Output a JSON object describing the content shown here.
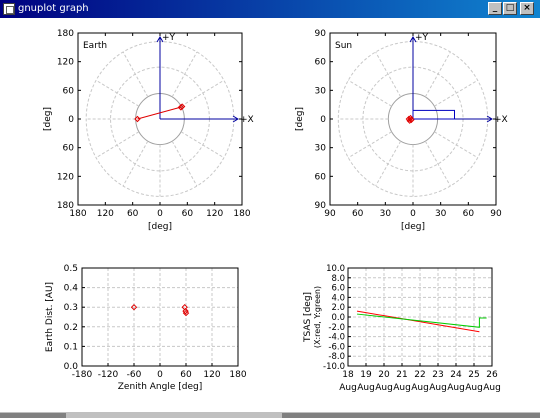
{
  "window": {
    "title": "gnuplot graph",
    "buttons": {
      "minimize": "_",
      "maximize": "□",
      "close": "×"
    }
  },
  "chart_data": [
    {
      "name": "earth-polar",
      "type": "scatter",
      "label": "Earth",
      "xlabel": "[deg]",
      "ylabel": "[deg]",
      "x_ticks": [
        "180",
        "120",
        "60",
        "0",
        "60",
        "120",
        "180"
      ],
      "y_ticks": [
        "180",
        "120",
        "60",
        "0",
        "60",
        "120",
        "180"
      ],
      "xlim": [
        -200,
        200
      ],
      "ylim": [
        -200,
        200
      ],
      "axis_labels": {
        "x": "+X",
        "y": "+Y"
      },
      "grid": true,
      "points": [
        [
          -55,
          0
        ],
        [
          51,
          27
        ],
        [
          54,
          29
        ]
      ],
      "path": [
        [
          -55,
          0
        ],
        [
          52,
          28
        ]
      ]
    },
    {
      "name": "sun-polar",
      "type": "scatter",
      "label": "Sun",
      "xlabel": "[deg]",
      "ylabel": "[deg]",
      "x_ticks": [
        "90",
        "60",
        "30",
        "0",
        "30",
        "60",
        "90"
      ],
      "y_ticks": [
        "90",
        "60",
        "30",
        "0",
        "30",
        "60",
        "90"
      ],
      "xlim": [
        -100,
        100
      ],
      "ylim": [
        -100,
        100
      ],
      "axis_labels": {
        "x": "+X",
        "y": "+Y"
      },
      "grid": true,
      "points": [
        [
          -5,
          0
        ],
        [
          -3,
          1
        ],
        [
          -2,
          -1
        ],
        [
          -4,
          -2
        ]
      ],
      "rect": [
        [
          0,
          0
        ],
        [
          50,
          10
        ]
      ]
    },
    {
      "name": "zenith-distance",
      "type": "scatter",
      "xlabel": "Zenith Angle [deg]",
      "ylabel": "Earth Dist. [AU]",
      "x_ticks": [
        "-180",
        "-120",
        "-60",
        "0",
        "60",
        "120",
        "180"
      ],
      "y_ticks": [
        "0.0",
        "0.1",
        "0.2",
        "0.3",
        "0.4",
        "0.5"
      ],
      "xlim": [
        -180,
        180
      ],
      "ylim": [
        0,
        0.5
      ],
      "grid": true,
      "points": [
        [
          -60,
          0.3
        ],
        [
          57,
          0.3
        ],
        [
          59,
          0.28
        ],
        [
          60,
          0.27
        ]
      ]
    },
    {
      "name": "tsas-time",
      "type": "line",
      "xlabel": "",
      "ylabel": "TSAS [deg]",
      "ylabel2": "(X:red, Y:green)",
      "x_ticks": [
        "18",
        "19",
        "20",
        "21",
        "22",
        "23",
        "24",
        "25",
        "26"
      ],
      "x_tick_sub": "Aug",
      "y_ticks": [
        "-10.0",
        "-8.0",
        "-6.0",
        "-4.0",
        "-2.0",
        "0.0",
        "2.0",
        "4.0",
        "6.0",
        "8.0",
        "10.0"
      ],
      "xlim": [
        18,
        26
      ],
      "ylim": [
        -10,
        10
      ],
      "grid": true,
      "series": [
        {
          "name": "X",
          "color": "#ff0000",
          "points": [
            [
              18.5,
              1.2
            ],
            [
              25.3,
              -3.0
            ]
          ]
        },
        {
          "name": "Y",
          "color": "#00cc00",
          "points": [
            [
              18.5,
              0.6
            ],
            [
              25.3,
              -2.1
            ],
            [
              25.3,
              -0.2
            ],
            [
              25.7,
              -0.2
            ]
          ]
        }
      ]
    }
  ]
}
